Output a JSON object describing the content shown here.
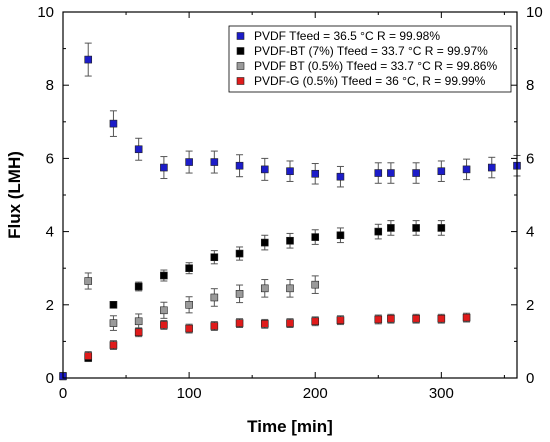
{
  "chart_data": {
    "type": "scatter",
    "title": "",
    "xlabel": "Time [min]",
    "ylabel": "Flux (LMH)",
    "xlim": [
      0,
      360
    ],
    "ylim": [
      0,
      10
    ],
    "xticks": [
      0,
      100,
      200,
      300
    ],
    "xticks_minor": [
      50,
      150,
      250,
      350
    ],
    "yticks": [
      0,
      2,
      4,
      6,
      8,
      10
    ],
    "yticks_minor": [
      1,
      3,
      5,
      7,
      9
    ],
    "right_axis": true,
    "grid": false,
    "legend_position": "top-right",
    "series": [
      {
        "name": "PVDF Tfeed = 36.5 °C R = 99.98%",
        "color": "#1c1cc8",
        "points": [
          {
            "x": 0,
            "y": 0.05,
            "err": 0.1
          },
          {
            "x": 20,
            "y": 8.7,
            "err": 0.45
          },
          {
            "x": 40,
            "y": 6.95,
            "err": 0.35
          },
          {
            "x": 60,
            "y": 6.25,
            "err": 0.3
          },
          {
            "x": 80,
            "y": 5.75,
            "err": 0.3
          },
          {
            "x": 100,
            "y": 5.9,
            "err": 0.3
          },
          {
            "x": 120,
            "y": 5.9,
            "err": 0.3
          },
          {
            "x": 140,
            "y": 5.8,
            "err": 0.3
          },
          {
            "x": 160,
            "y": 5.7,
            "err": 0.3
          },
          {
            "x": 180,
            "y": 5.65,
            "err": 0.28
          },
          {
            "x": 200,
            "y": 5.58,
            "err": 0.28
          },
          {
            "x": 220,
            "y": 5.5,
            "err": 0.28
          },
          {
            "x": 250,
            "y": 5.6,
            "err": 0.28
          },
          {
            "x": 260,
            "y": 5.6,
            "err": 0.28
          },
          {
            "x": 280,
            "y": 5.6,
            "err": 0.28
          },
          {
            "x": 300,
            "y": 5.65,
            "err": 0.28
          },
          {
            "x": 320,
            "y": 5.7,
            "err": 0.28
          },
          {
            "x": 340,
            "y": 5.75,
            "err": 0.28
          },
          {
            "x": 360,
            "y": 5.8,
            "err": 0.28
          }
        ]
      },
      {
        "name": "PVDF-BT (7%) Tfeed = 33.7 °C R = 99.97%",
        "color": "#000000",
        "points": [
          {
            "x": 20,
            "y": 0.55,
            "err": 0.1
          },
          {
            "x": 40,
            "y": 2.0,
            "err": 0
          },
          {
            "x": 60,
            "y": 2.5,
            "err": 0.12
          },
          {
            "x": 80,
            "y": 2.8,
            "err": 0.15
          },
          {
            "x": 100,
            "y": 3.0,
            "err": 0.15
          },
          {
            "x": 120,
            "y": 3.3,
            "err": 0.18
          },
          {
            "x": 140,
            "y": 3.4,
            "err": 0.18
          },
          {
            "x": 160,
            "y": 3.7,
            "err": 0.2
          },
          {
            "x": 180,
            "y": 3.75,
            "err": 0.2
          },
          {
            "x": 200,
            "y": 3.85,
            "err": 0.2
          },
          {
            "x": 220,
            "y": 3.9,
            "err": 0.2
          },
          {
            "x": 250,
            "y": 4.0,
            "err": 0.2
          },
          {
            "x": 260,
            "y": 4.1,
            "err": 0.2
          },
          {
            "x": 280,
            "y": 4.1,
            "err": 0.2
          },
          {
            "x": 300,
            "y": 4.1,
            "err": 0.2
          }
        ]
      },
      {
        "name": "PVDF BT (0.5%) Tfeed = 33.7 °C R = 99.86%",
        "color": "#9a9a9a",
        "points": [
          {
            "x": 20,
            "y": 2.65,
            "err": 0.22
          },
          {
            "x": 40,
            "y": 1.5,
            "err": 0.2
          },
          {
            "x": 60,
            "y": 1.55,
            "err": 0.2
          },
          {
            "x": 80,
            "y": 1.85,
            "err": 0.22
          },
          {
            "x": 100,
            "y": 2.0,
            "err": 0.22
          },
          {
            "x": 120,
            "y": 2.2,
            "err": 0.24
          },
          {
            "x": 140,
            "y": 2.3,
            "err": 0.24
          },
          {
            "x": 160,
            "y": 2.45,
            "err": 0.24
          },
          {
            "x": 180,
            "y": 2.45,
            "err": 0.24
          },
          {
            "x": 200,
            "y": 2.55,
            "err": 0.24
          }
        ]
      },
      {
        "name": "PVDF-G (0.5%) Tfeed = 36 °C, R = 99.99%",
        "color": "#e01b1b",
        "points": [
          {
            "x": 20,
            "y": 0.6,
            "err": 0.12
          },
          {
            "x": 40,
            "y": 0.9,
            "err": 0.12
          },
          {
            "x": 60,
            "y": 1.25,
            "err": 0.12
          },
          {
            "x": 80,
            "y": 1.45,
            "err": 0.12
          },
          {
            "x": 100,
            "y": 1.35,
            "err": 0.12
          },
          {
            "x": 120,
            "y": 1.42,
            "err": 0.12
          },
          {
            "x": 140,
            "y": 1.5,
            "err": 0.12
          },
          {
            "x": 160,
            "y": 1.48,
            "err": 0.12
          },
          {
            "x": 180,
            "y": 1.5,
            "err": 0.12
          },
          {
            "x": 200,
            "y": 1.55,
            "err": 0.12
          },
          {
            "x": 220,
            "y": 1.58,
            "err": 0.12
          },
          {
            "x": 250,
            "y": 1.6,
            "err": 0.12
          },
          {
            "x": 260,
            "y": 1.62,
            "err": 0.12
          },
          {
            "x": 280,
            "y": 1.62,
            "err": 0.12
          },
          {
            "x": 300,
            "y": 1.62,
            "err": 0.12
          },
          {
            "x": 320,
            "y": 1.65,
            "err": 0.12
          }
        ]
      }
    ]
  }
}
